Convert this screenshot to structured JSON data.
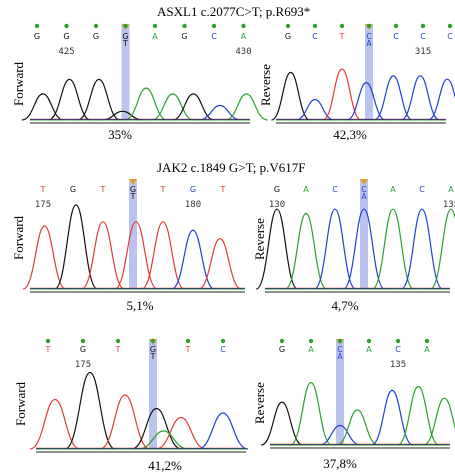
{
  "figure": {
    "section1": {
      "title": "ASXL1 c.2077C>T; p.R693*"
    },
    "section2": {
      "title": "JAK2 c.1849 G>T; p.V617F"
    },
    "panels": [
      {
        "id": "p1",
        "direction": "Forward",
        "percent": "35%",
        "bases": [
          "G",
          "G",
          "G",
          "G/T",
          "A",
          "G",
          "C",
          "A"
        ],
        "base_colors": [
          "black",
          "black",
          "black",
          "black",
          "green",
          "black",
          "blue",
          "green"
        ],
        "highlight_index": 3,
        "positions": [
          {
            "index": 1,
            "label": "425"
          },
          {
            "index": 7,
            "label": "430"
          }
        ]
      },
      {
        "id": "p2",
        "direction": "Reverse",
        "percent": "42,3%",
        "bases": [
          "G",
          "C",
          "T",
          "C/A",
          "C",
          "C",
          "C"
        ],
        "base_colors": [
          "black",
          "blue",
          "red",
          "blue",
          "blue",
          "blue",
          "blue"
        ],
        "highlight_index": 3,
        "positions": [
          {
            "index": 5,
            "label": "315"
          }
        ]
      },
      {
        "id": "p3",
        "direction": "Forward",
        "percent": "5,1%",
        "bases": [
          "T",
          "G",
          "T",
          "G/T",
          "T",
          "G",
          "T"
        ],
        "base_colors": [
          "red",
          "black",
          "red",
          "black",
          "red",
          "blue",
          "red"
        ],
        "highlight_index": 3,
        "positions": [
          {
            "index": 0,
            "label": "175"
          },
          {
            "index": 5,
            "label": "180"
          }
        ]
      },
      {
        "id": "p4",
        "direction": "Reverse",
        "percent": "4,7%",
        "bases": [
          "G",
          "A",
          "C",
          "C/A",
          "A",
          "C",
          "A"
        ],
        "base_colors": [
          "black",
          "green",
          "blue",
          "blue",
          "green",
          "blue",
          "green"
        ],
        "highlight_index": 3,
        "positions": [
          {
            "index": 0,
            "label": "130"
          },
          {
            "index": 6,
            "label": "135"
          }
        ]
      },
      {
        "id": "p5",
        "direction": "Forward",
        "percent": "41,2%",
        "bases": [
          "T",
          "G",
          "T",
          "G/T",
          "T",
          "C"
        ],
        "base_colors": [
          "red",
          "black",
          "red",
          "black",
          "red",
          "blue"
        ],
        "highlight_index": 3,
        "positions": [
          {
            "index": 1,
            "label": "175"
          }
        ]
      },
      {
        "id": "p6",
        "direction": "Reverse",
        "percent": "37,8%",
        "bases": [
          "G",
          "A",
          "C/A",
          "A",
          "C",
          "A"
        ],
        "base_colors": [
          "black",
          "green",
          "blue",
          "green",
          "blue",
          "green"
        ],
        "highlight_index": 2,
        "positions": [
          {
            "index": 4,
            "label": "135"
          }
        ]
      }
    ],
    "colors": {
      "highlight": "#b9c3ee",
      "green": "#2ca02c",
      "black": "#111111",
      "red": "#e53935",
      "blue": "#1f3fd4",
      "marker": "#e0a030"
    }
  }
}
